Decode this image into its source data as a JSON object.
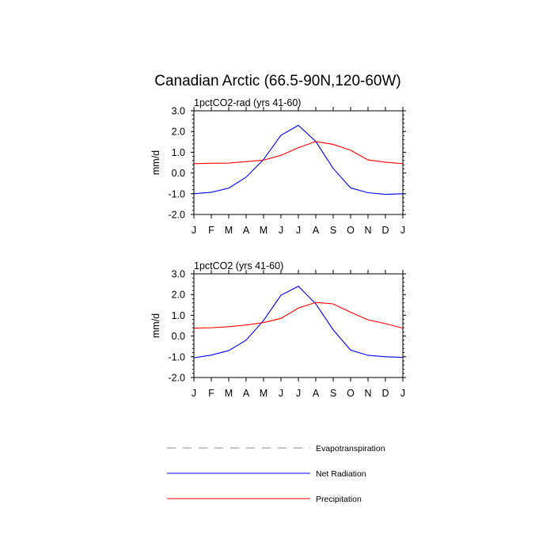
{
  "title": "Canadian Arctic (66.5-90N,120-60W)",
  "chart_data": [
    {
      "type": "line",
      "subtitle": "1pctCO2-rad (yrs 41-60)",
      "ylabel": "mm/d",
      "ylim": [
        -2.0,
        3.0
      ],
      "yticks": [
        "3.0",
        "2.0",
        "1.0",
        "0.0",
        "-1.0",
        "-2.0"
      ],
      "ytick_values": [
        3,
        2,
        1,
        0,
        -1,
        -2
      ],
      "categories": [
        "J",
        "F",
        "M",
        "A",
        "M",
        "J",
        "J",
        "A",
        "S",
        "O",
        "N",
        "D",
        "J"
      ],
      "grid": false,
      "series": [
        {
          "name": "Net Radiation",
          "color": "#0000ff",
          "values": [
            -1.0,
            -0.93,
            -0.73,
            -0.2,
            0.65,
            1.82,
            2.3,
            1.52,
            0.22,
            -0.72,
            -0.95,
            -1.03,
            -1.0
          ]
        },
        {
          "name": "Precipitation",
          "color": "#ff0000",
          "values": [
            0.45,
            0.47,
            0.48,
            0.55,
            0.62,
            0.85,
            1.22,
            1.52,
            1.38,
            1.1,
            0.63,
            0.52,
            0.45
          ]
        }
      ]
    },
    {
      "type": "line",
      "subtitle": "1pctCO2 (yrs 41-60)",
      "ylabel": "mm/d",
      "ylim": [
        -2.0,
        3.0
      ],
      "yticks": [
        "3.0",
        "2.0",
        "1.0",
        "0.0",
        "-1.0",
        "-2.0"
      ],
      "ytick_values": [
        3,
        2,
        1,
        0,
        -1,
        -2
      ],
      "categories": [
        "J",
        "F",
        "M",
        "A",
        "M",
        "J",
        "J",
        "A",
        "S",
        "O",
        "N",
        "D",
        "J"
      ],
      "grid": false,
      "series": [
        {
          "name": "Net Radiation",
          "color": "#0000ff",
          "values": [
            -1.05,
            -0.92,
            -0.7,
            -0.2,
            0.75,
            1.97,
            2.4,
            1.55,
            0.3,
            -0.68,
            -0.93,
            -1.0,
            -1.03
          ]
        },
        {
          "name": "Precipitation",
          "color": "#ff0000",
          "values": [
            0.38,
            0.4,
            0.45,
            0.53,
            0.65,
            0.85,
            1.35,
            1.62,
            1.55,
            1.15,
            0.78,
            0.6,
            0.38
          ]
        }
      ]
    }
  ],
  "legend": {
    "placement": "bottom",
    "items": [
      {
        "label": "Evapotranspiration",
        "color": "#888888",
        "style": "dashed"
      },
      {
        "label": "Net Radiation",
        "color": "#0000ff",
        "style": "solid"
      },
      {
        "label": "Precipitation",
        "color": "#ff0000",
        "style": "solid"
      }
    ]
  }
}
